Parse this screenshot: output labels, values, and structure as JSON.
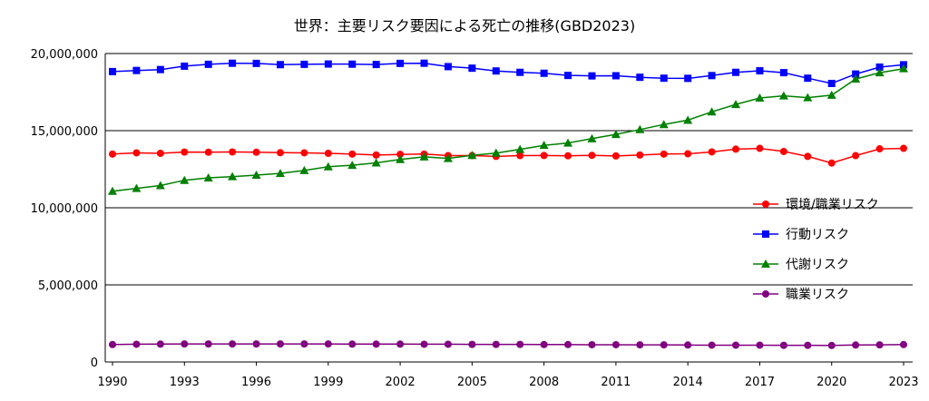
{
  "chart_data": {
    "type": "line",
    "title": "世界：主要リスク要因による死亡の推移(GBD2023)",
    "xlabel": "",
    "ylabel": "",
    "ylim": [
      0,
      20000000
    ],
    "y_ticks": [
      {
        "value": 0,
        "label": "0"
      },
      {
        "value": 5000000,
        "label": "5,000,000"
      },
      {
        "value": 10000000,
        "label": "10,000,000"
      },
      {
        "value": 15000000,
        "label": "15,000,000"
      },
      {
        "value": 20000000,
        "label": "20,000,000"
      }
    ],
    "x_tick_labels": [
      "1990",
      "1993",
      "1996",
      "1999",
      "2002",
      "2005",
      "2008",
      "2011",
      "2014",
      "2017",
      "2020",
      "2023"
    ],
    "grid": "horizontal",
    "legend_position": "right",
    "x": [
      1990,
      1991,
      1992,
      1993,
      1994,
      1995,
      1996,
      1997,
      1998,
      1999,
      2000,
      2001,
      2002,
      2003,
      2004,
      2005,
      2006,
      2007,
      2008,
      2009,
      2010,
      2011,
      2012,
      2013,
      2014,
      2015,
      2016,
      2017,
      2018,
      2019,
      2020,
      2021,
      2022,
      2023
    ],
    "series": [
      {
        "name": "環境/職業リスク",
        "color": "#ff0000",
        "marker": "circle",
        "values": [
          13480000,
          13560000,
          13530000,
          13610000,
          13600000,
          13620000,
          13600000,
          13570000,
          13560000,
          13530000,
          13480000,
          13420000,
          13460000,
          13480000,
          13380000,
          13380000,
          13330000,
          13380000,
          13390000,
          13370000,
          13400000,
          13360000,
          13420000,
          13480000,
          13500000,
          13620000,
          13800000,
          13850000,
          13650000,
          13330000,
          12900000,
          13380000,
          13820000,
          13850000
        ]
      },
      {
        "name": "行動リスク",
        "color": "#0000ff",
        "marker": "square",
        "values": [
          18830000,
          18900000,
          18960000,
          19180000,
          19300000,
          19370000,
          19360000,
          19280000,
          19300000,
          19320000,
          19310000,
          19290000,
          19360000,
          19370000,
          19150000,
          19050000,
          18870000,
          18780000,
          18720000,
          18580000,
          18550000,
          18560000,
          18460000,
          18400000,
          18390000,
          18570000,
          18780000,
          18880000,
          18760000,
          18400000,
          18060000,
          18670000,
          19120000,
          19270000
        ]
      },
      {
        "name": "代謝リスク",
        "color": "#008000",
        "marker": "triangle",
        "values": [
          11070000,
          11260000,
          11440000,
          11780000,
          11940000,
          12020000,
          12120000,
          12230000,
          12420000,
          12660000,
          12760000,
          12910000,
          13130000,
          13300000,
          13200000,
          13400000,
          13550000,
          13790000,
          14050000,
          14200000,
          14480000,
          14760000,
          15070000,
          15400000,
          15680000,
          16220000,
          16700000,
          17120000,
          17260000,
          17140000,
          17300000,
          18350000,
          18760000,
          19020000
        ]
      },
      {
        "name": "職業リスク",
        "color": "#800080",
        "marker": "circle",
        "values": [
          1130000,
          1150000,
          1160000,
          1170000,
          1170000,
          1170000,
          1170000,
          1170000,
          1170000,
          1170000,
          1160000,
          1160000,
          1160000,
          1150000,
          1150000,
          1140000,
          1140000,
          1140000,
          1130000,
          1130000,
          1120000,
          1120000,
          1110000,
          1110000,
          1100000,
          1090000,
          1090000,
          1090000,
          1080000,
          1080000,
          1070000,
          1100000,
          1110000,
          1130000
        ]
      }
    ]
  }
}
